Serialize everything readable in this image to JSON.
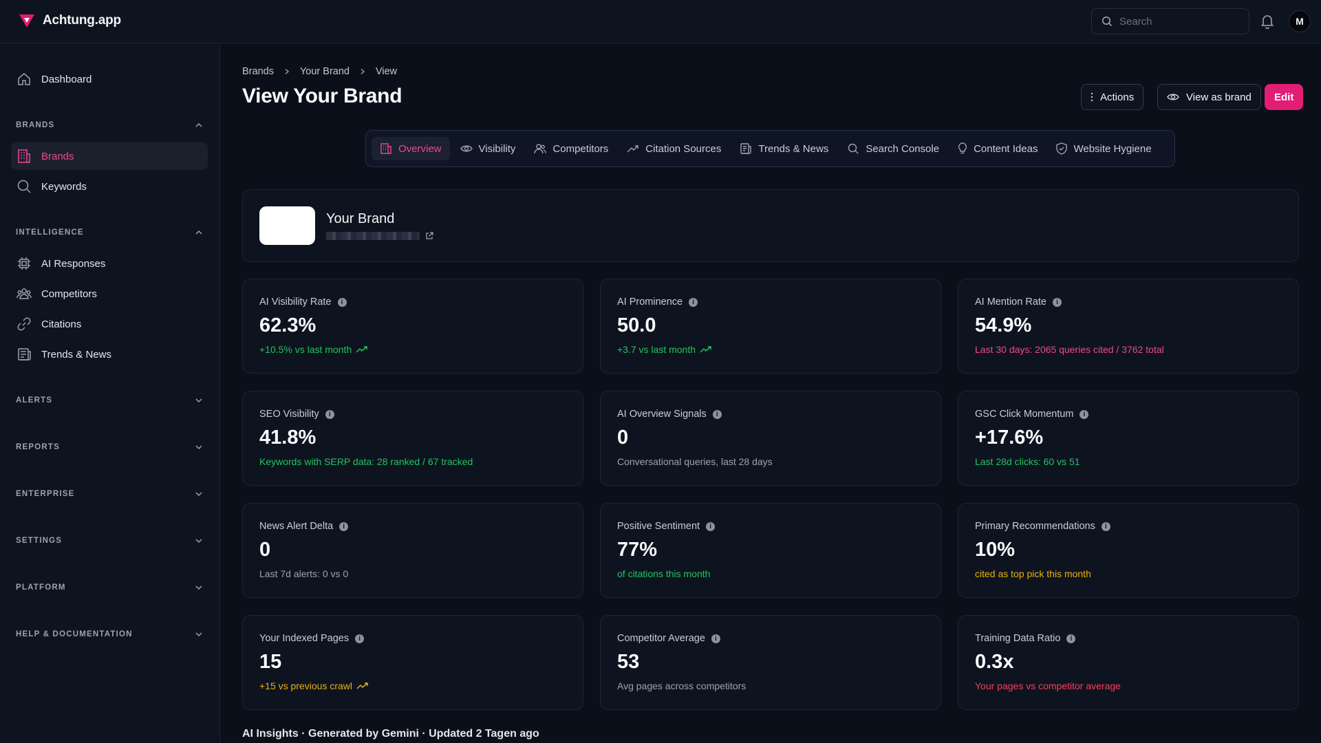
{
  "app": {
    "name": "Achtung.app",
    "brand_color": "#e11d74"
  },
  "topbar": {
    "search_placeholder": "Search",
    "avatar_initial": "M"
  },
  "sidebar": {
    "dashboard_label": "Dashboard",
    "sections": {
      "brands": "BRANDS",
      "intelligence": "INTELLIGENCE",
      "alerts": "ALERTS",
      "reports": "REPORTS",
      "enterprise": "ENTERPRISE",
      "settings": "SETTINGS",
      "platform": "PLATFORM",
      "help": "HELP & DOCUMENTATION"
    },
    "brands_items": [
      "Brands",
      "Keywords"
    ],
    "intelligence_items": [
      "AI Responses",
      "Competitors",
      "Citations",
      "Trends & News"
    ]
  },
  "breadcrumb": [
    "Brands",
    "Your Brand",
    "View"
  ],
  "page_title": "View Your Brand",
  "header_buttons": {
    "actions": "Actions",
    "view_as_brand": "View as brand",
    "edit": "Edit"
  },
  "tabs": [
    {
      "label": "Overview",
      "icon": "building-icon",
      "active": true
    },
    {
      "label": "Visibility",
      "icon": "eye-icon"
    },
    {
      "label": "Competitors",
      "icon": "users-icon"
    },
    {
      "label": "Citation Sources",
      "icon": "trending-icon"
    },
    {
      "label": "Trends & News",
      "icon": "newspaper-icon"
    },
    {
      "label": "Search Console",
      "icon": "search-icon"
    },
    {
      "label": "Content Ideas",
      "icon": "lightbulb-icon"
    },
    {
      "label": "Website Hygiene",
      "icon": "shield-icon"
    }
  ],
  "brand": {
    "name": "Your Brand"
  },
  "metrics": [
    {
      "label": "AI Visibility Rate",
      "value": "62.3%",
      "sub": "+10.5% vs last month",
      "tone": "green",
      "trend": true
    },
    {
      "label": "AI Prominence",
      "value": "50.0",
      "sub": "+3.7 vs last month",
      "tone": "green",
      "trend": true
    },
    {
      "label": "AI Mention Rate",
      "value": "54.9%",
      "sub": "Last 30 days: 2065 queries cited / 3762 total",
      "tone": "pink",
      "trend": false
    },
    {
      "label": "SEO Visibility",
      "value": "41.8%",
      "sub": "Keywords with SERP data: 28 ranked / 67 tracked",
      "tone": "green",
      "trend": false
    },
    {
      "label": "AI Overview Signals",
      "value": "0",
      "sub": "Conversational queries, last 28 days",
      "tone": "gray",
      "trend": false
    },
    {
      "label": "GSC Click Momentum",
      "value": "+17.6%",
      "sub": "Last 28d clicks: 60 vs 51",
      "tone": "green",
      "trend": false
    },
    {
      "label": "News Alert Delta",
      "value": "0",
      "sub": "Last 7d alerts: 0 vs 0",
      "tone": "gray",
      "trend": false
    },
    {
      "label": "Positive Sentiment",
      "value": "77%",
      "sub": "of citations this month",
      "tone": "green",
      "trend": false
    },
    {
      "label": "Primary Recommendations",
      "value": "10%",
      "sub": "cited as top pick this month",
      "tone": "amber",
      "trend": false
    },
    {
      "label": "Your Indexed Pages",
      "value": "15",
      "sub": "+15 vs previous crawl",
      "tone": "amber",
      "trend": true
    },
    {
      "label": "Competitor Average",
      "value": "53",
      "sub": "Avg pages across competitors",
      "tone": "gray",
      "trend": false
    },
    {
      "label": "Training Data Ratio",
      "value": "0.3x",
      "sub": "Your pages vs competitor average",
      "tone": "red",
      "trend": false
    }
  ],
  "insights_heading": "AI Insights · Generated by Gemini · Updated 2 Tagen ago"
}
